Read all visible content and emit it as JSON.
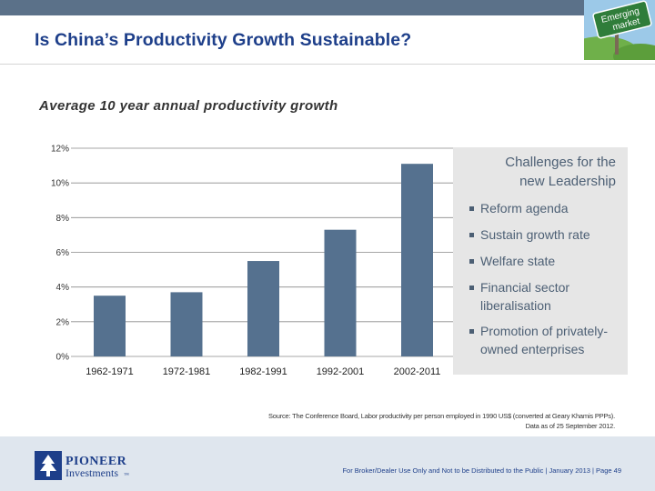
{
  "header": {
    "title": "Is China’s Productivity Growth Sustainable?",
    "logo_text_line1": "Emerging",
    "logo_text_line2": "market"
  },
  "chart_data": {
    "type": "bar",
    "title": "Average 10 year annual productivity growth",
    "categories": [
      "1962-1971",
      "1972-1981",
      "1982-1991",
      "1992-2001",
      "2002-2011"
    ],
    "values": [
      3.5,
      3.7,
      5.5,
      7.3,
      11.1
    ],
    "ylim": [
      0,
      12
    ],
    "yticks": [
      "0%",
      "2%",
      "4%",
      "6%",
      "8%",
      "10%",
      "12%"
    ],
    "xlabel": "",
    "ylabel": "",
    "bar_color": "#55718f"
  },
  "panel": {
    "title_line1": "Challenges for the",
    "title_line2": "new Leadership",
    "items": [
      "Reform agenda",
      "Sustain growth rate",
      "Welfare state",
      "Financial sector liberalisation",
      "Promotion of privately-owned enterprises"
    ]
  },
  "source": {
    "line1": "Source: The Conference Board, Labor productivity per person employed in 1990 US$ (converted at Geary Khamis PPPs).",
    "line2": "Data as of 25 September 2012."
  },
  "footer": {
    "brand_line1": "PIONEER",
    "brand_line2": "Investments",
    "brand_mark": "™",
    "disclaimer": "For Broker/Dealer Use Only and Not to be Distributed to the Public | January 2013 | Page 49"
  },
  "colors": {
    "title": "#1e3f8a",
    "topbar": "#5b7189",
    "panel_bg": "#e6e6e6",
    "panel_text": "#4c5f74",
    "footer_bg": "#dfe6ee"
  }
}
